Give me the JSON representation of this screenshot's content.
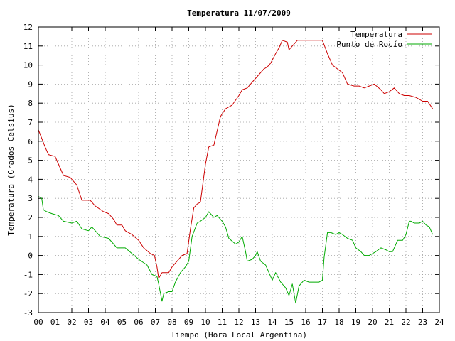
{
  "chart_data": {
    "type": "line",
    "title": "Temperatura 11/07/2009",
    "xlabel": "Tiempo (Hora Local Argentina)",
    "ylabel": "Temperatura (Grados Celsius)",
    "xlim": [
      0,
      24
    ],
    "ylim": [
      -3,
      12
    ],
    "x_ticks": [
      "00",
      "01",
      "02",
      "03",
      "04",
      "05",
      "06",
      "07",
      "08",
      "09",
      "10",
      "11",
      "12",
      "13",
      "14",
      "15",
      "16",
      "17",
      "18",
      "19",
      "20",
      "21",
      "22",
      "23",
      "24"
    ],
    "y_ticks": [
      "-3",
      "-2",
      "-1",
      "0",
      "1",
      "2",
      "3",
      "4",
      "5",
      "6",
      "7",
      "8",
      "9",
      "10",
      "11",
      "12"
    ],
    "grid": true,
    "legend_position": "top-right",
    "series": [
      {
        "name": "Temperatura",
        "color": "#cc0000",
        "x": [
          0.0,
          0.4,
          0.6,
          1.0,
          1.2,
          1.5,
          1.9,
          2.3,
          2.6,
          3.1,
          3.4,
          3.9,
          4.2,
          4.5,
          4.7,
          5.0,
          5.2,
          5.6,
          6.0,
          6.3,
          6.7,
          6.95,
          7.1,
          7.2,
          7.4,
          7.8,
          8.0,
          8.3,
          8.6,
          8.9,
          9.1,
          9.3,
          9.5,
          9.7,
          10.0,
          10.2,
          10.5,
          10.9,
          11.2,
          11.4,
          11.6,
          12.0,
          12.2,
          12.5,
          12.9,
          13.2,
          13.5,
          13.7,
          13.9,
          14.2,
          14.4,
          14.6,
          14.9,
          15.0,
          15.2,
          15.5,
          15.8,
          16.2,
          16.5,
          16.8,
          17.0,
          17.3,
          17.6,
          17.9,
          18.2,
          18.5,
          18.9,
          19.2,
          19.5,
          19.8,
          20.1,
          20.5,
          20.7,
          21.0,
          21.3,
          21.6,
          21.9,
          22.2,
          22.6,
          23.0,
          23.3,
          23.6
        ],
        "values": [
          6.6,
          5.7,
          5.3,
          5.2,
          4.8,
          4.2,
          4.1,
          3.7,
          2.9,
          2.9,
          2.6,
          2.3,
          2.2,
          1.9,
          1.6,
          1.6,
          1.3,
          1.1,
          0.8,
          0.4,
          0.1,
          0.0,
          -0.6,
          -1.2,
          -0.9,
          -0.9,
          -0.6,
          -0.3,
          0.0,
          0.1,
          1.4,
          2.5,
          2.7,
          2.8,
          4.8,
          5.7,
          5.8,
          7.3,
          7.7,
          7.8,
          7.9,
          8.4,
          8.7,
          8.8,
          9.2,
          9.5,
          9.8,
          9.9,
          10.1,
          10.6,
          10.9,
          11.3,
          11.2,
          10.8,
          11.0,
          11.3,
          11.3,
          11.3,
          11.3,
          11.3,
          11.3,
          10.6,
          10.0,
          9.8,
          9.6,
          9.0,
          8.9,
          8.9,
          8.8,
          8.9,
          9.0,
          8.7,
          8.5,
          8.6,
          8.8,
          8.5,
          8.4,
          8.4,
          8.3,
          8.1,
          8.1,
          7.7
        ]
      },
      {
        "name": "Punto de Rocío",
        "color": "#00aa00",
        "x": [
          0.0,
          0.2,
          0.3,
          0.5,
          0.8,
          1.2,
          1.5,
          2.0,
          2.3,
          2.6,
          3.0,
          3.2,
          3.5,
          3.7,
          4.2,
          4.5,
          4.7,
          5.2,
          5.6,
          6.0,
          6.5,
          6.8,
          7.1,
          7.2,
          7.4,
          7.5,
          7.8,
          8.0,
          8.2,
          8.5,
          8.8,
          9.0,
          9.2,
          9.5,
          9.7,
          10.0,
          10.2,
          10.5,
          10.7,
          11.0,
          11.2,
          11.4,
          11.8,
          12.0,
          12.2,
          12.4,
          12.5,
          12.8,
          13.0,
          13.1,
          13.3,
          13.6,
          13.8,
          14.0,
          14.2,
          14.5,
          14.8,
          15.0,
          15.2,
          15.4,
          15.6,
          15.9,
          16.2,
          16.5,
          16.8,
          17.0,
          17.1,
          17.3,
          17.5,
          17.8,
          18.0,
          18.2,
          18.5,
          18.8,
          19.0,
          19.3,
          19.5,
          19.8,
          20.0,
          20.2,
          20.5,
          20.8,
          21.0,
          21.2,
          21.5,
          21.8,
          22.0,
          22.2,
          22.3,
          22.5,
          22.8,
          23.0,
          23.2,
          23.4,
          23.6
        ],
        "values": [
          3.1,
          3.0,
          2.4,
          2.3,
          2.2,
          2.1,
          1.8,
          1.7,
          1.8,
          1.4,
          1.3,
          1.5,
          1.2,
          1.0,
          0.9,
          0.6,
          0.4,
          0.4,
          0.1,
          -0.2,
          -0.5,
          -1.0,
          -1.1,
          -1.5,
          -2.4,
          -2.0,
          -1.9,
          -1.9,
          -1.4,
          -0.9,
          -0.6,
          -0.3,
          1.0,
          1.7,
          1.8,
          2.0,
          2.3,
          2.0,
          2.1,
          1.8,
          1.5,
          0.9,
          0.6,
          0.7,
          1.0,
          0.2,
          -0.3,
          -0.2,
          0.0,
          0.2,
          -0.3,
          -0.5,
          -0.9,
          -1.3,
          -0.9,
          -1.4,
          -1.7,
          -2.1,
          -1.5,
          -2.5,
          -1.6,
          -1.3,
          -1.4,
          -1.4,
          -1.4,
          -1.3,
          -0.1,
          1.2,
          1.2,
          1.1,
          1.2,
          1.1,
          0.9,
          0.8,
          0.4,
          0.2,
          0.0,
          0.0,
          0.1,
          0.2,
          0.4,
          0.3,
          0.2,
          0.2,
          0.8,
          0.8,
          1.1,
          1.8,
          1.8,
          1.7,
          1.7,
          1.8,
          1.6,
          1.5,
          1.1
        ]
      }
    ]
  }
}
